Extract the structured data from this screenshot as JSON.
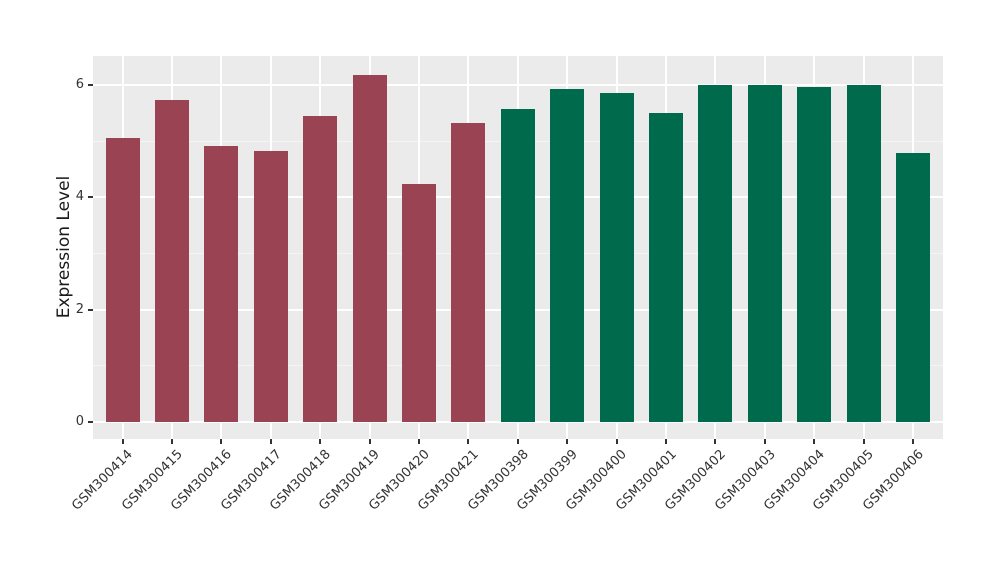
{
  "chart_data": {
    "type": "bar",
    "title": "",
    "xlabel": "",
    "ylabel": "Expression Level",
    "categories": [
      "GSM300414",
      "GSM300415",
      "GSM300416",
      "GSM300417",
      "GSM300418",
      "GSM300419",
      "GSM300420",
      "GSM300421",
      "GSM300398",
      "GSM300399",
      "GSM300400",
      "GSM300401",
      "GSM300402",
      "GSM300403",
      "GSM300404",
      "GSM300405",
      "GSM300406"
    ],
    "values": [
      5.06,
      5.73,
      4.91,
      4.82,
      5.45,
      6.18,
      4.24,
      5.32,
      5.57,
      5.93,
      5.86,
      5.5,
      6.0,
      6.0,
      5.97,
      6.0,
      4.79
    ],
    "bar_colors": [
      "#9A4352",
      "#9A4352",
      "#9A4352",
      "#9A4352",
      "#9A4352",
      "#9A4352",
      "#9A4352",
      "#9A4352",
      "#006B4C",
      "#006B4C",
      "#006B4C",
      "#006B4C",
      "#006B4C",
      "#006B4C",
      "#006B4C",
      "#006B4C",
      "#006B4C"
    ],
    "group_split": {
      "first_group_color": "#9A4352",
      "second_group_color": "#006B4C",
      "first_group_count": 8
    },
    "ylim": [
      0,
      6.5
    ],
    "yticks": [
      0,
      2,
      4,
      6
    ],
    "ytick_labels": [
      "0",
      "2",
      "4",
      "6"
    ],
    "minor_yticks": [
      1,
      3,
      5
    ],
    "x_label_rotation_deg": 45,
    "grid": true,
    "legend_position": "none",
    "colors": {
      "panel_background": "#EBEBEB",
      "grid_major": "#FFFFFF",
      "grid_minor": "#F5F5F5",
      "axis_text": "#333333",
      "axis_title": "#1A1A1A",
      "tick_mark": "#333333",
      "figure_background": "#FFFFFF"
    }
  }
}
